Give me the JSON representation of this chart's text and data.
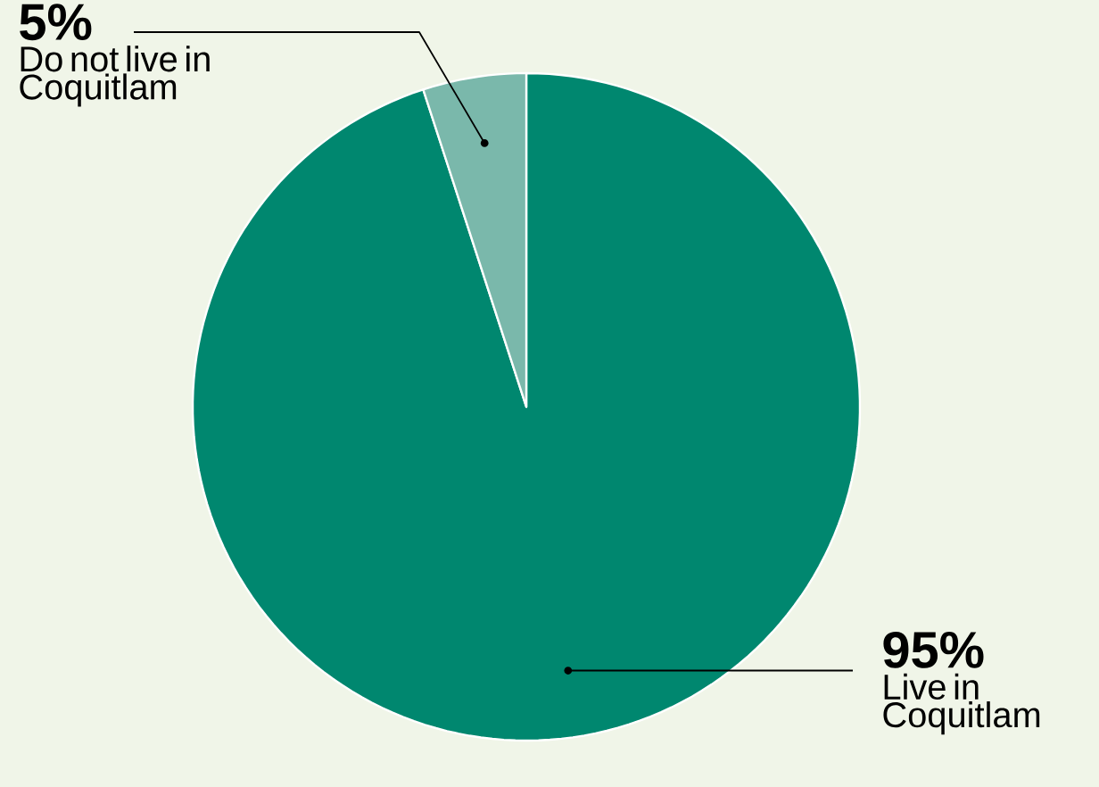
{
  "chart_data": {
    "type": "pie",
    "categories": [
      "Live in Coquitlam",
      "Do not live in Coquitlam"
    ],
    "values": [
      95,
      5
    ],
    "colors": [
      "#00876f",
      "#7ab8ab"
    ],
    "value_labels": [
      "95%",
      "5%"
    ]
  }
}
